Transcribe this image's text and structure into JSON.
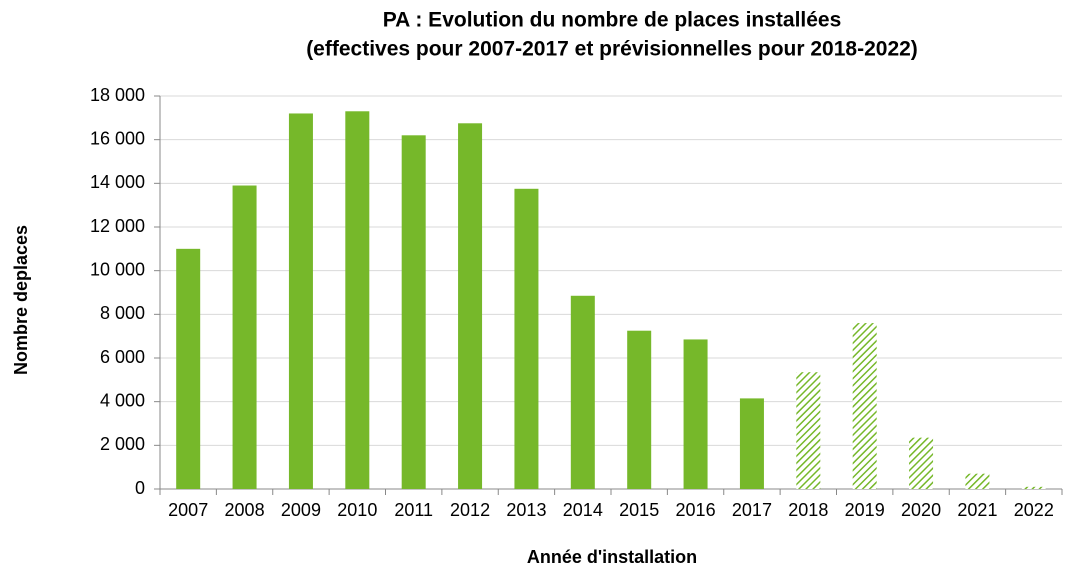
{
  "chart_data": {
    "type": "bar",
    "title": "PA : Evolution du nombre de places installées",
    "subtitle": "(effectives pour 2007-2017 et prévisionnelles pour 2018-2022)",
    "x_label": "Année d'installation",
    "y_label": "Nombre deplaces",
    "categories": [
      "2007",
      "2008",
      "2009",
      "2010",
      "2011",
      "2012",
      "2013",
      "2014",
      "2015",
      "2016",
      "2017",
      "2018",
      "2019",
      "2020",
      "2021",
      "2022"
    ],
    "values": [
      11000,
      13900,
      17200,
      17300,
      16200,
      16750,
      13750,
      8850,
      7250,
      6850,
      4150,
      5350,
      7600,
      2350,
      700,
      100
    ],
    "hatched": [
      false,
      false,
      false,
      false,
      false,
      false,
      false,
      false,
      false,
      false,
      false,
      true,
      true,
      true,
      true,
      true
    ],
    "color": "#76b82a",
    "ylim": [
      0,
      18000
    ],
    "yticks": [
      0,
      {
        "value": 2000,
        "label": "2 000"
      },
      {
        "value": 4000,
        "label": "4 000"
      },
      {
        "value": 6000,
        "label": "6 000"
      },
      {
        "value": 8000,
        "label": "8 000"
      },
      {
        "value": 10000,
        "label": "10 000"
      },
      {
        "value": 12000,
        "label": "12 000"
      },
      {
        "value": 14000,
        "label": "14 000"
      },
      {
        "value": 16000,
        "label": "16 000"
      },
      {
        "value": 18000,
        "label": "18 000"
      }
    ],
    "grid": true
  }
}
